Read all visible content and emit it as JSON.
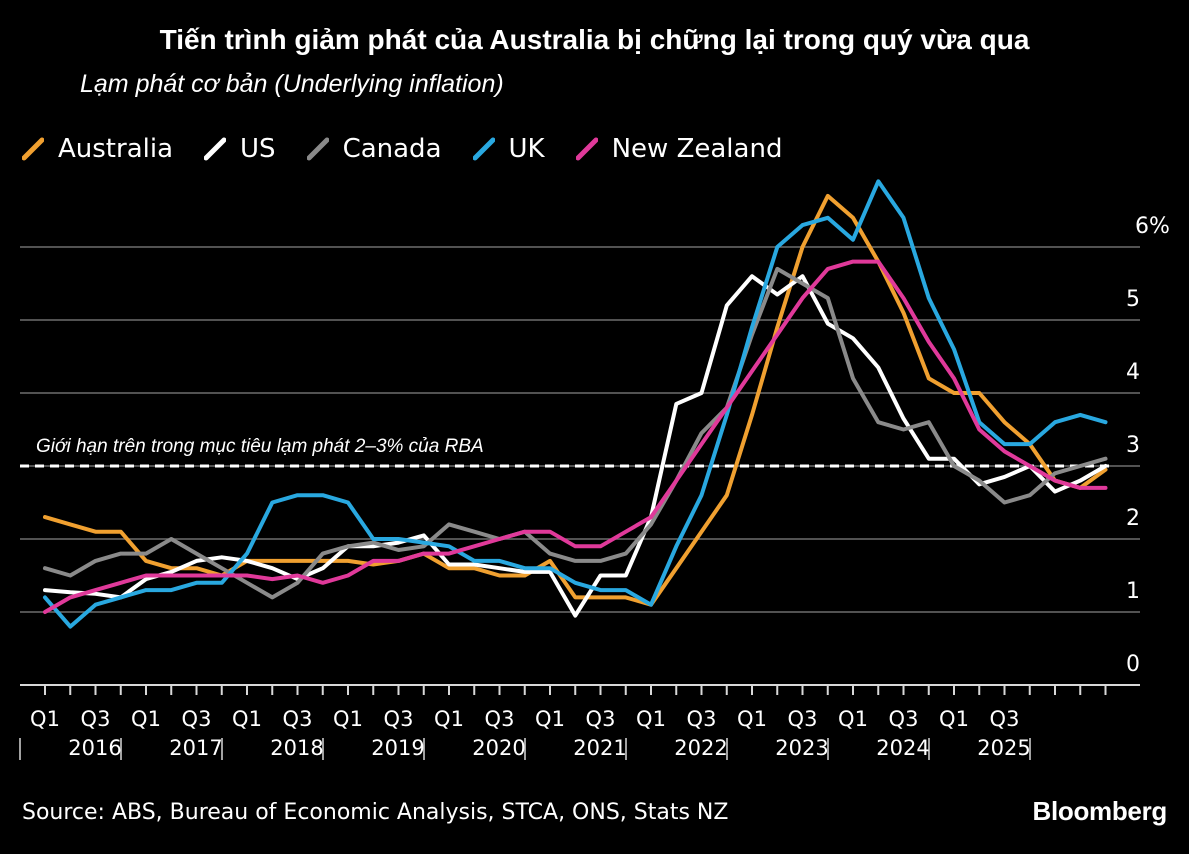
{
  "title": "Tiến trình giảm phát của Australia bị chững lại trong quý vừa qua",
  "subtitle": "Lạm phát cơ bản (Underlying inflation)",
  "source": "Source: ABS, Bureau of Economic Analysis, STCA, ONS, Stats NZ",
  "brand": "Bloomberg",
  "colors": {
    "background": "#000000",
    "Australia": "#f0a030",
    "US": "#ffffff",
    "Canada": "#8a8a8a",
    "UK": "#29a8e0",
    "New Zealand": "#e0399a"
  },
  "legend": [
    {
      "name": "Australia",
      "color": "#f0a030"
    },
    {
      "name": "US",
      "color": "#ffffff"
    },
    {
      "name": "Canada",
      "color": "#8a8a8a"
    },
    {
      "name": "UK",
      "color": "#29a8e0"
    },
    {
      "name": "New Zealand",
      "color": "#e0399a"
    }
  ],
  "chart_data": {
    "type": "line",
    "title": "Tiến trình giảm phát của Australia bị chững lại trong quý vừa qua",
    "ylabel": "Lạm phát cơ bản (Underlying inflation)",
    "ylim": [
      0,
      6.5
    ],
    "yticks": [
      0,
      1,
      2,
      3,
      4,
      5,
      6
    ],
    "ytick_labels": [
      "0",
      "1",
      "2",
      "3",
      "4",
      "5",
      "6%"
    ],
    "x_quarter_ticks": [
      "Q1",
      "Q3",
      "Q1",
      "Q3",
      "Q1",
      "Q3",
      "Q1",
      "Q3",
      "Q1",
      "Q3",
      "Q1",
      "Q3",
      "Q1",
      "Q3",
      "Q1",
      "Q3",
      "Q1",
      "Q3",
      "Q1",
      "Q3"
    ],
    "year_labels": [
      "2016",
      "2017",
      "2018",
      "2019",
      "2020",
      "2021",
      "2022",
      "2023",
      "2024",
      "2025"
    ],
    "annotation": {
      "text": "Giới hạn trên trong mục tiêu lạm phát 2–3% của RBA",
      "y": 3.0
    },
    "series": [
      {
        "name": "Australia",
        "values": [
          2.3,
          2.2,
          2.1,
          2.1,
          1.7,
          1.6,
          1.6,
          1.5,
          1.7,
          1.7,
          1.7,
          1.7,
          1.7,
          1.65,
          1.7,
          1.8,
          1.6,
          1.6,
          1.5,
          1.5,
          1.7,
          1.2,
          1.2,
          1.2,
          1.1,
          1.6,
          2.1,
          2.6,
          3.7,
          4.9,
          6.0,
          6.7,
          6.4,
          5.8,
          5.1,
          4.2,
          4.0,
          4.0,
          3.6,
          3.3,
          2.8,
          2.7,
          2.95
        ]
      },
      {
        "name": "US",
        "values": [
          1.3,
          1.27,
          1.25,
          1.2,
          1.45,
          1.55,
          1.7,
          1.75,
          1.7,
          1.6,
          1.45,
          1.6,
          1.9,
          1.9,
          1.95,
          2.05,
          1.65,
          1.65,
          1.6,
          1.55,
          1.55,
          0.95,
          1.5,
          1.5,
          2.3,
          3.85,
          4.0,
          5.2,
          5.6,
          5.35,
          5.6,
          4.95,
          4.75,
          4.35,
          3.65,
          3.1,
          3.1,
          2.75,
          2.85,
          3.0,
          2.65,
          2.8,
          3.0
        ]
      },
      {
        "name": "Canada",
        "values": [
          1.6,
          1.5,
          1.7,
          1.8,
          1.8,
          2.0,
          1.8,
          1.6,
          1.4,
          1.2,
          1.4,
          1.8,
          1.9,
          1.95,
          1.85,
          1.9,
          2.2,
          2.1,
          2.0,
          2.1,
          1.8,
          1.7,
          1.7,
          1.8,
          2.2,
          2.8,
          3.45,
          3.8,
          4.8,
          5.7,
          5.5,
          5.3,
          4.2,
          3.6,
          3.5,
          3.6,
          3.0,
          2.8,
          2.5,
          2.6,
          2.9,
          3.0,
          3.1
        ]
      },
      {
        "name": "UK",
        "values": [
          1.2,
          0.8,
          1.1,
          1.2,
          1.3,
          1.3,
          1.4,
          1.4,
          1.8,
          2.5,
          2.6,
          2.6,
          2.5,
          2.0,
          2.0,
          1.95,
          1.9,
          1.7,
          1.7,
          1.6,
          1.6,
          1.4,
          1.3,
          1.3,
          1.1,
          1.9,
          2.6,
          3.7,
          4.9,
          6.0,
          6.3,
          6.4,
          6.1,
          6.9,
          6.4,
          5.3,
          4.6,
          3.6,
          3.3,
          3.3,
          3.6,
          3.7,
          3.6
        ]
      },
      {
        "name": "New Zealand",
        "values": [
          1.0,
          1.2,
          1.3,
          1.4,
          1.5,
          1.5,
          1.5,
          1.5,
          1.5,
          1.45,
          1.5,
          1.4,
          1.5,
          1.7,
          1.7,
          1.8,
          1.8,
          1.9,
          2.0,
          2.1,
          2.1,
          1.9,
          1.9,
          2.1,
          2.3,
          2.8,
          3.3,
          3.8,
          4.3,
          4.8,
          5.3,
          5.7,
          5.8,
          5.8,
          5.3,
          4.7,
          4.2,
          3.5,
          3.2,
          3.0,
          2.8,
          2.7,
          2.7
        ]
      }
    ]
  }
}
